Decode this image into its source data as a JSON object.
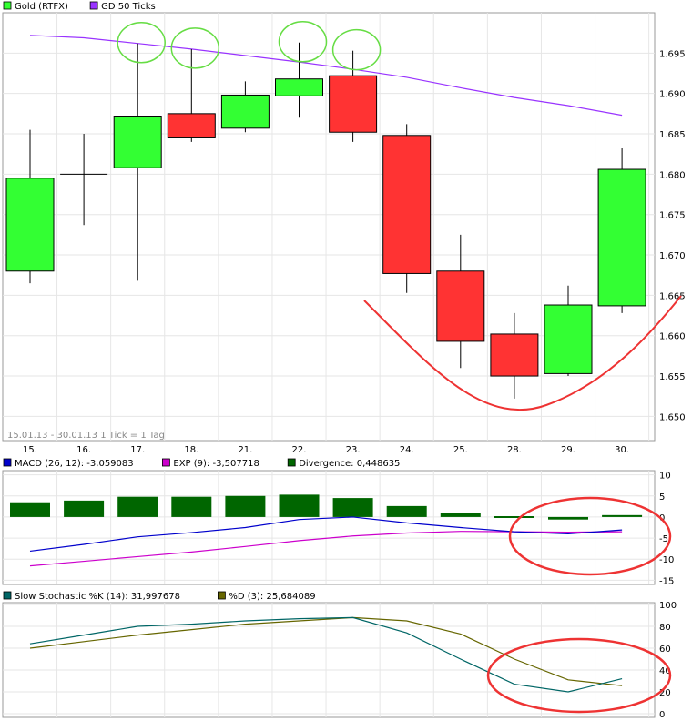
{
  "chart_data": [
    {
      "type": "candlestick",
      "legend": [
        {
          "name": "Gold (RTFX)",
          "color": "#33ff33"
        },
        {
          "name": "GD 50 Ticks",
          "color": "#9933ff"
        }
      ],
      "info": "15.01.13 - 30.01.13   1 Tick = 1 Tag",
      "ylim": [
        1.647,
        1.7
      ],
      "yticks": [
        "1.650",
        "1.655",
        "1.660",
        "1.665",
        "1.670",
        "1.675",
        "1.680",
        "1.685",
        "1.690",
        "1.695"
      ],
      "ytick_values": [
        1.65,
        1.655,
        1.66,
        1.665,
        1.67,
        1.675,
        1.68,
        1.685,
        1.69,
        1.695
      ],
      "categories": [
        "15.",
        "16.",
        "17.",
        "18.",
        "21.",
        "22.",
        "23.",
        "24.",
        "25.",
        "28.",
        "29.",
        "30."
      ],
      "ohlc": [
        {
          "o": 1.668,
          "h": 1.6855,
          "l": 1.6665,
          "c": 1.6795
        },
        {
          "o": 1.68,
          "h": 1.685,
          "l": 1.6737,
          "c": 1.68
        },
        {
          "o": 1.6808,
          "h": 1.6962,
          "l": 1.6668,
          "c": 1.6872
        },
        {
          "o": 1.6875,
          "h": 1.6955,
          "l": 1.684,
          "c": 1.6845
        },
        {
          "o": 1.6857,
          "h": 1.6915,
          "l": 1.6852,
          "c": 1.6898
        },
        {
          "o": 1.6897,
          "h": 1.6963,
          "l": 1.687,
          "c": 1.6918
        },
        {
          "o": 1.6922,
          "h": 1.6953,
          "l": 1.684,
          "c": 1.6852
        },
        {
          "o": 1.6848,
          "h": 1.6862,
          "l": 1.6653,
          "c": 1.6677
        },
        {
          "o": 1.668,
          "h": 1.6725,
          "l": 1.656,
          "c": 1.6593
        },
        {
          "o": 1.6602,
          "h": 1.6628,
          "l": 1.6522,
          "c": 1.655
        },
        {
          "o": 1.6553,
          "h": 1.6662,
          "l": 1.655,
          "c": 1.6638
        },
        {
          "o": 1.6637,
          "h": 1.6832,
          "l": 1.6628,
          "c": 1.6806
        }
      ],
      "ma_values": [
        1.6972,
        1.6969,
        1.6962,
        1.6955,
        1.6947,
        1.6939,
        1.693,
        1.692,
        1.6907,
        1.6895,
        1.6885,
        1.6873
      ],
      "colors": {
        "up": "#33ff33",
        "down": "#ff3333",
        "ma": "#9933ff",
        "annotation_circle": "#66dd44",
        "annotation_curve": "#ee3333"
      }
    },
    {
      "type": "bar+line",
      "legend": [
        {
          "name": "MACD (26, 12): -3,059083",
          "color": "#0000cc"
        },
        {
          "name": "EXP (9): -3,507718",
          "color": "#cc00cc"
        },
        {
          "name": "Divergence: 0,448635",
          "color": "#006600"
        }
      ],
      "ylim": [
        -16,
        11
      ],
      "yticks": [
        "10",
        "5",
        "0",
        "-5",
        "-10",
        "-15"
      ],
      "ytick_values": [
        10,
        5,
        0,
        -5,
        -10,
        -15
      ],
      "divergence": [
        3.5,
        3.9,
        4.8,
        4.8,
        5.0,
        5.3,
        4.5,
        2.6,
        1.0,
        0.2,
        -0.6,
        0.45
      ],
      "macd": [
        -8.1,
        -6.5,
        -4.7,
        -3.7,
        -2.5,
        -0.6,
        0.0,
        -1.4,
        -2.5,
        -3.5,
        -4.0,
        -3.06
      ],
      "exp": [
        -11.6,
        -10.5,
        -9.4,
        -8.3,
        -7.0,
        -5.6,
        -4.5,
        -3.8,
        -3.4,
        -3.5,
        -3.6,
        -3.5
      ],
      "colors": {
        "divergence": "#006600",
        "macd": "#0000cc",
        "exp": "#cc00cc",
        "annotation": "#ee3333"
      }
    },
    {
      "type": "line",
      "legend": [
        {
          "name": "Slow Stochastic %K (14): 31,997678",
          "color": "#006666"
        },
        {
          "name": "%D (3): 25,684089",
          "color": "#666600"
        }
      ],
      "ylim": [
        0,
        100
      ],
      "yticks": [
        "100",
        "80",
        "60",
        "40",
        "20",
        "0"
      ],
      "ytick_values": [
        100,
        80,
        60,
        40,
        20,
        0
      ],
      "k": [
        64,
        72,
        80,
        82,
        85,
        87,
        88,
        74,
        50,
        27,
        20,
        32
      ],
      "d": [
        60,
        66,
        72,
        77,
        82,
        85,
        88,
        85,
        73,
        50,
        31,
        25.7
      ],
      "colors": {
        "k": "#006666",
        "d": "#666600",
        "annotation": "#ee3333"
      }
    }
  ]
}
